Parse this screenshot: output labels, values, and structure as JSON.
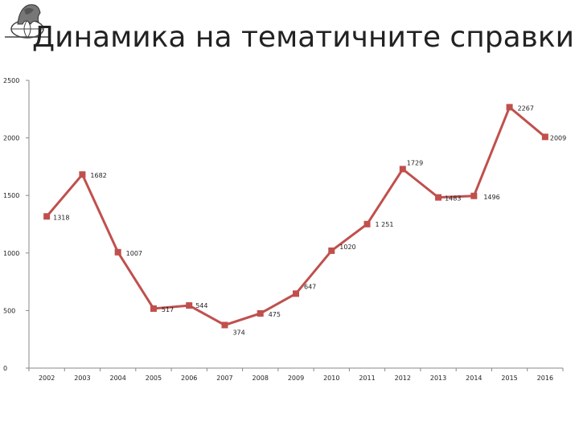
{
  "title": "Динамика на тематичните справки",
  "colors": {
    "series": "#c0504d",
    "axis": "#888888"
  },
  "logo": {
    "icon": "lion-globe-logo-icon"
  },
  "chart_data": {
    "type": "line",
    "title": "Динамика на тематичните справки",
    "xlabel": "",
    "ylabel": "",
    "ylim": [
      0,
      2500
    ],
    "y_ticks": [
      0,
      500,
      1000,
      1500,
      2000,
      2500
    ],
    "grid": false,
    "x": [
      "2002",
      "2003",
      "2004",
      "2005",
      "2006",
      "2007",
      "2008",
      "2009",
      "2010",
      "2011",
      "2012",
      "2013",
      "2014",
      "2015",
      "2016"
    ],
    "series": [
      {
        "values": [
          1318,
          1682,
          1007,
          517,
          544,
          374,
          475,
          647,
          1020,
          1251,
          1729,
          1483,
          1496,
          2267,
          2009
        ],
        "labels": [
          "1318",
          "1682",
          "1007",
          "517",
          "544",
          "374",
          "475",
          "647",
          "1020",
          "1 251",
          "1729",
          "1483",
          "1496",
          "2267",
          "2009"
        ]
      }
    ]
  }
}
